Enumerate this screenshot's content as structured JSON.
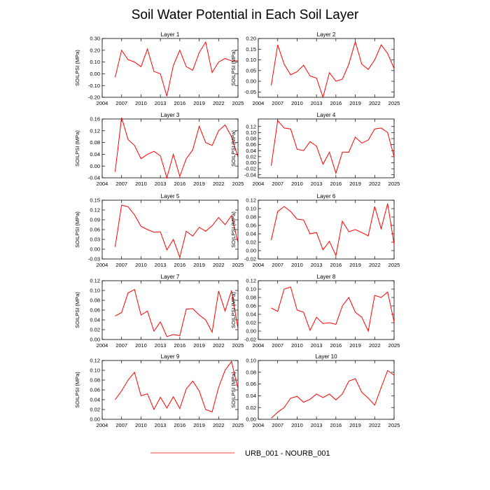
{
  "figure": {
    "title": "Soil Water Potential in Each Soil Layer",
    "legend": {
      "label": "URB_001 - NOURB_001",
      "color": "#ff0000",
      "placement": "bottom-center"
    }
  },
  "chart_data": [
    {
      "type": "line",
      "title": "Layer 1",
      "ylabel": "SOILPSI  (MPa)",
      "x": [
        2006,
        2007,
        2008,
        2009,
        2010,
        2011,
        2012,
        2013,
        2014,
        2015,
        2016,
        2017,
        2018,
        2019,
        2020,
        2021,
        2022,
        2023,
        2024,
        2025
      ],
      "values": [
        -0.03,
        0.2,
        0.12,
        0.1,
        0.06,
        0.21,
        0.02,
        0.0,
        -0.19,
        0.07,
        0.2,
        0.06,
        0.03,
        0.18,
        0.27,
        0.01,
        0.1,
        0.13,
        0.11,
        0.11
      ],
      "xlim": [
        2004,
        2025
      ],
      "ylim": [
        -0.2,
        0.3
      ],
      "xticks": [
        2004,
        2007,
        2010,
        2013,
        2016,
        2019,
        2022,
        2025
      ],
      "xtick_labels": [
        "2004",
        "2007",
        "2010",
        "2013",
        "2016",
        "2019",
        "2022",
        "2025"
      ],
      "yticks": [
        -0.2,
        -0.1,
        0,
        0.1,
        0.2,
        0.3
      ],
      "ytick_labels": [
        "-0.20",
        "-0.10",
        "0.00",
        "0.10",
        "0.20",
        "0.30"
      ],
      "series_color": "#ff0000"
    },
    {
      "type": "line",
      "title": "Layer 2",
      "ylabel": "SOILPSI  (MPa)",
      "x": [
        2006,
        2007,
        2008,
        2009,
        2010,
        2011,
        2012,
        2013,
        2014,
        2015,
        2016,
        2017,
        2018,
        2019,
        2020,
        2021,
        2022,
        2023,
        2024,
        2025
      ],
      "values": [
        -0.02,
        0.17,
        0.08,
        0.03,
        0.045,
        0.075,
        0.025,
        0.015,
        -0.075,
        0.04,
        0.0,
        0.01,
        0.08,
        0.185,
        0.08,
        0.055,
        0.1,
        0.17,
        0.13,
        0.06
      ],
      "xlim": [
        2004,
        2025
      ],
      "ylim": [
        -0.075,
        0.2
      ],
      "xticks": [
        2004,
        2007,
        2010,
        2013,
        2016,
        2019,
        2022,
        2025
      ],
      "xtick_labels": [
        "2004",
        "2007",
        "2010",
        "2013",
        "2016",
        "2019",
        "2022",
        "2025"
      ],
      "yticks": [
        -0.05,
        0,
        0.05,
        0.1,
        0.15,
        0.2
      ],
      "ytick_labels": [
        "-0.05",
        "0.00",
        "0.05",
        "0.10",
        "0.15",
        "0.20"
      ],
      "series_color": "#ff0000"
    },
    {
      "type": "line",
      "title": "Layer 3",
      "ylabel": "SOILPSI  (MPa)",
      "x": [
        2006,
        2007,
        2008,
        2009,
        2010,
        2011,
        2012,
        2013,
        2014,
        2015,
        2016,
        2017,
        2018,
        2019,
        2020,
        2021,
        2022,
        2023,
        2024,
        2025
      ],
      "values": [
        -0.02,
        0.165,
        0.09,
        0.07,
        0.025,
        0.04,
        0.05,
        0.035,
        -0.04,
        0.04,
        -0.035,
        0.025,
        0.055,
        0.135,
        0.08,
        0.07,
        0.12,
        0.14,
        0.1,
        0.03
      ],
      "xlim": [
        2004,
        2025
      ],
      "ylim": [
        -0.04,
        0.16
      ],
      "xticks": [
        2004,
        2007,
        2010,
        2013,
        2016,
        2019,
        2022,
        2025
      ],
      "xtick_labels": [
        "2004",
        "2007",
        "2010",
        "2013",
        "2016",
        "2019",
        "2022",
        "2025"
      ],
      "yticks": [
        -0.04,
        0,
        0.04,
        0.08,
        0.12,
        0.16
      ],
      "ytick_labels": [
        "-0.04",
        "0.00",
        "0.04",
        "0.08",
        "0.12",
        "0.16"
      ],
      "series_color": "#ff0000"
    },
    {
      "type": "line",
      "title": "Layer 4",
      "ylabel": "SOILPSI  (MPa)",
      "x": [
        2006,
        2007,
        2008,
        2009,
        2010,
        2011,
        2012,
        2013,
        2014,
        2015,
        2016,
        2017,
        2018,
        2019,
        2020,
        2021,
        2022,
        2023,
        2024,
        2025
      ],
      "values": [
        -0.01,
        0.14,
        0.115,
        0.112,
        0.045,
        0.04,
        0.07,
        0.055,
        -0.005,
        0.035,
        -0.035,
        0.035,
        0.035,
        0.085,
        0.065,
        0.075,
        0.112,
        0.115,
        0.1,
        0.02
      ],
      "xlim": [
        2004,
        2025
      ],
      "ylim": [
        -0.05,
        0.145
      ],
      "xticks": [
        2004,
        2007,
        2010,
        2013,
        2016,
        2019,
        2022,
        2025
      ],
      "xtick_labels": [
        "2004",
        "2007",
        "2010",
        "2013",
        "2016",
        "2019",
        "2022",
        "2025"
      ],
      "yticks": [
        -0.04,
        -0.02,
        0,
        0.02,
        0.04,
        0.06,
        0.08,
        0.1,
        0.12
      ],
      "ytick_labels": [
        "-0.04",
        "-0.02",
        "0.00",
        "0.02",
        "0.04",
        "0.06",
        "0.08",
        "0.10",
        "0.12"
      ],
      "series_color": "#ff0000"
    },
    {
      "type": "line",
      "title": "Layer 5",
      "ylabel": "SOILPSI  (MPa)",
      "x": [
        2006,
        2007,
        2008,
        2009,
        2010,
        2011,
        2012,
        2013,
        2014,
        2015,
        2016,
        2017,
        2018,
        2019,
        2020,
        2021,
        2022,
        2023,
        2024,
        2025
      ],
      "values": [
        0.007,
        0.135,
        0.13,
        0.105,
        0.07,
        0.06,
        0.052,
        0.053,
        -0.002,
        0.03,
        -0.025,
        0.055,
        0.04,
        0.067,
        0.055,
        0.072,
        0.097,
        0.075,
        0.103,
        0.02
      ],
      "xlim": [
        2004,
        2025
      ],
      "ylim": [
        -0.03,
        0.15
      ],
      "xticks": [
        2004,
        2007,
        2010,
        2013,
        2016,
        2019,
        2022,
        2025
      ],
      "xtick_labels": [
        "2004",
        "2007",
        "2010",
        "2013",
        "2016",
        "2019",
        "2022",
        "2025"
      ],
      "yticks": [
        -0.03,
        0,
        0.03,
        0.06,
        0.09,
        0.12,
        0.15
      ],
      "ytick_labels": [
        "-0.03",
        "0.00",
        "0.03",
        "0.06",
        "0.09",
        "0.12",
        "0.15"
      ],
      "series_color": "#ff0000"
    },
    {
      "type": "line",
      "title": "Layer 6",
      "ylabel": "SOILPSI  (MPa)",
      "x": [
        2006,
        2007,
        2008,
        2009,
        2010,
        2011,
        2012,
        2013,
        2014,
        2015,
        2016,
        2017,
        2018,
        2019,
        2020,
        2021,
        2022,
        2023,
        2024,
        2025
      ],
      "values": [
        0.025,
        0.093,
        0.105,
        0.093,
        0.075,
        0.073,
        0.04,
        0.043,
        0.002,
        0.022,
        -0.012,
        0.07,
        0.045,
        0.05,
        0.043,
        0.035,
        0.105,
        0.052,
        0.112,
        0.015
      ],
      "xlim": [
        2004,
        2025
      ],
      "ylim": [
        -0.02,
        0.12
      ],
      "xticks": [
        2004,
        2007,
        2010,
        2013,
        2016,
        2019,
        2022,
        2025
      ],
      "xtick_labels": [
        "2004",
        "2007",
        "2010",
        "2013",
        "2016",
        "2019",
        "2022",
        "2025"
      ],
      "yticks": [
        -0.02,
        0,
        0.02,
        0.04,
        0.06,
        0.08,
        0.1,
        0.12
      ],
      "ytick_labels": [
        "-0.02",
        "0.00",
        "0.02",
        "0.04",
        "0.06",
        "0.08",
        "0.10",
        "0.12"
      ],
      "series_color": "#ff0000"
    },
    {
      "type": "line",
      "title": "Layer 7",
      "ylabel": "SOILPSI  (MPa)",
      "x": [
        2006,
        2007,
        2008,
        2009,
        2010,
        2011,
        2012,
        2013,
        2014,
        2015,
        2016,
        2017,
        2018,
        2019,
        2020,
        2021,
        2022,
        2023,
        2024,
        2025
      ],
      "values": [
        0.048,
        0.055,
        0.095,
        0.102,
        0.05,
        0.058,
        0.017,
        0.036,
        0.006,
        0.01,
        0.008,
        0.062,
        0.063,
        0.05,
        0.04,
        0.015,
        0.099,
        0.058,
        0.1,
        0.022
      ],
      "xlim": [
        2004,
        2025
      ],
      "ylim": [
        0,
        0.12
      ],
      "xticks": [
        2004,
        2007,
        2010,
        2013,
        2016,
        2019,
        2022,
        2025
      ],
      "xtick_labels": [
        "2004",
        "2007",
        "2010",
        "2013",
        "2016",
        "2019",
        "2022",
        "2025"
      ],
      "yticks": [
        0,
        0.02,
        0.04,
        0.06,
        0.08,
        0.1,
        0.12
      ],
      "ytick_labels": [
        "0.00",
        "0.02",
        "0.04",
        "0.06",
        "0.08",
        "0.10",
        "0.12"
      ],
      "series_color": "#ff0000"
    },
    {
      "type": "line",
      "title": "Layer 8",
      "ylabel": "SOILPSI  (MPa)",
      "x": [
        2006,
        2007,
        2008,
        2009,
        2010,
        2011,
        2012,
        2013,
        2014,
        2015,
        2016,
        2017,
        2018,
        2019,
        2020,
        2021,
        2022,
        2023,
        2024,
        2025
      ],
      "values": [
        0.055,
        0.047,
        0.1,
        0.105,
        0.05,
        0.045,
        0.002,
        0.033,
        0.018,
        0.02,
        0.016,
        0.06,
        0.08,
        0.045,
        0.033,
        0.0,
        0.085,
        0.08,
        0.093,
        0.022
      ],
      "xlim": [
        2004,
        2025
      ],
      "ylim": [
        -0.02,
        0.12
      ],
      "xticks": [
        2004,
        2007,
        2010,
        2013,
        2016,
        2019,
        2022,
        2025
      ],
      "xtick_labels": [
        "2004",
        "2007",
        "2010",
        "2013",
        "2016",
        "2019",
        "2022",
        "2025"
      ],
      "yticks": [
        -0.02,
        0,
        0.02,
        0.04,
        0.06,
        0.08,
        0.1,
        0.12
      ],
      "ytick_labels": [
        "-0.02",
        "0.00",
        "0.02",
        "0.04",
        "0.06",
        "0.08",
        "0.10",
        "0.12"
      ],
      "series_color": "#ff0000"
    },
    {
      "type": "line",
      "title": "Layer 9",
      "ylabel": "SOILPSI  (MPa)",
      "x": [
        2006,
        2007,
        2008,
        2009,
        2010,
        2011,
        2012,
        2013,
        2014,
        2015,
        2016,
        2017,
        2018,
        2019,
        2020,
        2021,
        2022,
        2023,
        2024,
        2025
      ],
      "values": [
        0.04,
        0.058,
        0.08,
        0.096,
        0.048,
        0.052,
        0.02,
        0.045,
        0.023,
        0.046,
        0.022,
        0.062,
        0.078,
        0.058,
        0.02,
        0.015,
        0.065,
        0.1,
        0.118,
        0.062
      ],
      "xlim": [
        2004,
        2025
      ],
      "ylim": [
        0,
        0.12
      ],
      "xticks": [
        2004,
        2007,
        2010,
        2013,
        2016,
        2019,
        2022,
        2025
      ],
      "xtick_labels": [
        "2004",
        "2007",
        "2010",
        "2013",
        "2016",
        "2019",
        "2022",
        "2025"
      ],
      "yticks": [
        0,
        0.02,
        0.04,
        0.06,
        0.08,
        0.1,
        0.12
      ],
      "ytick_labels": [
        "0.00",
        "0.02",
        "0.04",
        "0.06",
        "0.08",
        "0.10",
        "0.12"
      ],
      "series_color": "#ff0000"
    },
    {
      "type": "line",
      "title": "Layer 10",
      "ylabel": "SOILPSI  (MPa)",
      "x": [
        2006,
        2007,
        2008,
        2009,
        2010,
        2011,
        2012,
        2013,
        2014,
        2015,
        2016,
        2017,
        2018,
        2019,
        2020,
        2021,
        2022,
        2023,
        2024,
        2025
      ],
      "values": [
        0.002,
        0.012,
        0.02,
        0.036,
        0.039,
        0.029,
        0.034,
        0.043,
        0.037,
        0.043,
        0.033,
        0.043,
        0.065,
        0.069,
        0.046,
        0.036,
        0.024,
        0.054,
        0.083,
        0.075
      ],
      "xlim": [
        2004,
        2025
      ],
      "ylim": [
        0,
        0.1
      ],
      "xticks": [
        2004,
        2007,
        2010,
        2013,
        2016,
        2019,
        2022,
        2025
      ],
      "xtick_labels": [
        "2004",
        "2007",
        "2010",
        "2013",
        "2016",
        "2019",
        "2022",
        "2025"
      ],
      "yticks": [
        0,
        0.02,
        0.04,
        0.06,
        0.08,
        0.1
      ],
      "ytick_labels": [
        "0.00",
        "0.02",
        "0.04",
        "0.06",
        "0.08",
        "0.10"
      ],
      "series_color": "#ff0000"
    }
  ]
}
